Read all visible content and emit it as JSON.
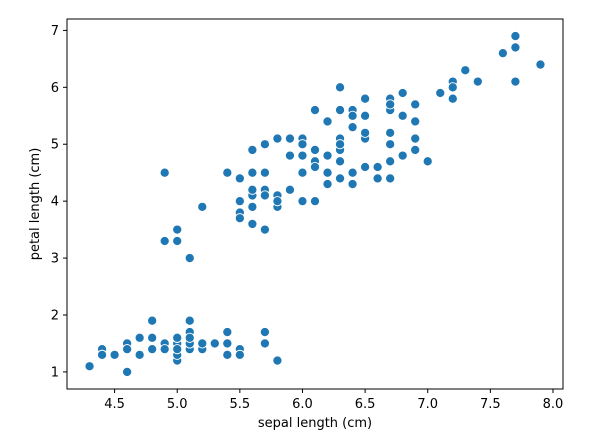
{
  "chart_data": {
    "type": "scatter",
    "xlabel": "sepal length (cm)",
    "ylabel": "petal length (cm)",
    "xlim": [
      4.12,
      8.08
    ],
    "ylim": [
      0.7,
      7.2
    ],
    "xticks": [
      4.5,
      5.0,
      5.5,
      6.0,
      6.5,
      7.0,
      7.5,
      8.0
    ],
    "xtick_labels": [
      "4.5",
      "5.0",
      "5.5",
      "6.0",
      "6.5",
      "7.0",
      "7.5",
      "8.0"
    ],
    "yticks": [
      1,
      2,
      3,
      4,
      5,
      6,
      7
    ],
    "ytick_labels": [
      "1",
      "2",
      "3",
      "4",
      "5",
      "6",
      "7"
    ],
    "grid": false,
    "marker_color": "#1f77b4",
    "marker_edge_color": "#ffffff",
    "points": [
      [
        5.1,
        1.4
      ],
      [
        4.9,
        1.4
      ],
      [
        4.7,
        1.3
      ],
      [
        4.6,
        1.5
      ],
      [
        5.0,
        1.4
      ],
      [
        5.4,
        1.7
      ],
      [
        4.6,
        1.4
      ],
      [
        5.0,
        1.5
      ],
      [
        4.4,
        1.4
      ],
      [
        4.9,
        1.5
      ],
      [
        5.4,
        1.5
      ],
      [
        4.8,
        1.6
      ],
      [
        4.8,
        1.4
      ],
      [
        4.3,
        1.1
      ],
      [
        5.8,
        1.2
      ],
      [
        5.7,
        1.5
      ],
      [
        5.4,
        1.3
      ],
      [
        5.1,
        1.4
      ],
      [
        5.7,
        1.7
      ],
      [
        5.1,
        1.5
      ],
      [
        5.4,
        1.7
      ],
      [
        5.1,
        1.5
      ],
      [
        4.6,
        1.0
      ],
      [
        5.1,
        1.7
      ],
      [
        4.8,
        1.9
      ],
      [
        5.0,
        1.6
      ],
      [
        5.0,
        1.6
      ],
      [
        5.2,
        1.5
      ],
      [
        5.2,
        1.4
      ],
      [
        4.7,
        1.6
      ],
      [
        4.8,
        1.6
      ],
      [
        5.4,
        1.5
      ],
      [
        5.2,
        1.5
      ],
      [
        5.5,
        1.4
      ],
      [
        4.9,
        1.5
      ],
      [
        5.0,
        1.2
      ],
      [
        5.5,
        1.3
      ],
      [
        4.9,
        1.4
      ],
      [
        4.4,
        1.3
      ],
      [
        5.1,
        1.5
      ],
      [
        5.0,
        1.3
      ],
      [
        4.5,
        1.3
      ],
      [
        4.4,
        1.3
      ],
      [
        5.0,
        1.6
      ],
      [
        5.1,
        1.9
      ],
      [
        4.8,
        1.4
      ],
      [
        5.1,
        1.6
      ],
      [
        4.6,
        1.4
      ],
      [
        5.3,
        1.5
      ],
      [
        5.0,
        1.4
      ],
      [
        7.0,
        4.7
      ],
      [
        6.4,
        4.5
      ],
      [
        6.9,
        4.9
      ],
      [
        5.5,
        4.0
      ],
      [
        6.5,
        4.6
      ],
      [
        5.7,
        4.5
      ],
      [
        6.3,
        4.7
      ],
      [
        4.9,
        3.3
      ],
      [
        6.6,
        4.6
      ],
      [
        5.2,
        3.9
      ],
      [
        5.0,
        3.5
      ],
      [
        5.9,
        4.2
      ],
      [
        6.0,
        4.0
      ],
      [
        6.1,
        4.7
      ],
      [
        5.6,
        3.6
      ],
      [
        6.7,
        4.4
      ],
      [
        5.6,
        4.5
      ],
      [
        5.8,
        4.1
      ],
      [
        6.2,
        4.5
      ],
      [
        5.6,
        3.9
      ],
      [
        5.9,
        4.8
      ],
      [
        6.1,
        4.0
      ],
      [
        6.3,
        4.9
      ],
      [
        6.1,
        4.7
      ],
      [
        6.4,
        4.3
      ],
      [
        6.6,
        4.4
      ],
      [
        6.8,
        4.8
      ],
      [
        6.7,
        5.0
      ],
      [
        6.0,
        4.5
      ],
      [
        5.7,
        3.5
      ],
      [
        5.5,
        3.8
      ],
      [
        5.5,
        3.7
      ],
      [
        5.8,
        3.9
      ],
      [
        6.0,
        5.1
      ],
      [
        5.4,
        4.5
      ],
      [
        6.0,
        4.5
      ],
      [
        6.7,
        4.7
      ],
      [
        6.3,
        4.4
      ],
      [
        5.6,
        4.1
      ],
      [
        5.5,
        4.0
      ],
      [
        5.5,
        4.4
      ],
      [
        6.1,
        4.6
      ],
      [
        5.8,
        4.0
      ],
      [
        5.0,
        3.3
      ],
      [
        5.6,
        4.2
      ],
      [
        5.7,
        4.2
      ],
      [
        5.7,
        4.2
      ],
      [
        6.2,
        4.3
      ],
      [
        5.1,
        3.0
      ],
      [
        5.7,
        4.1
      ],
      [
        6.3,
        6.0
      ],
      [
        5.8,
        5.1
      ],
      [
        7.1,
        5.9
      ],
      [
        6.3,
        5.6
      ],
      [
        6.5,
        5.8
      ],
      [
        7.6,
        6.6
      ],
      [
        4.9,
        4.5
      ],
      [
        7.3,
        6.3
      ],
      [
        6.7,
        5.8
      ],
      [
        7.2,
        6.1
      ],
      [
        6.5,
        5.1
      ],
      [
        6.4,
        5.3
      ],
      [
        6.8,
        5.5
      ],
      [
        5.7,
        5.0
      ],
      [
        5.8,
        5.1
      ],
      [
        6.4,
        5.3
      ],
      [
        6.5,
        5.5
      ],
      [
        7.7,
        6.7
      ],
      [
        7.7,
        6.9
      ],
      [
        6.0,
        5.0
      ],
      [
        6.9,
        5.7
      ],
      [
        5.6,
        4.9
      ],
      [
        7.7,
        6.7
      ],
      [
        6.3,
        4.9
      ],
      [
        6.7,
        5.7
      ],
      [
        7.2,
        6.0
      ],
      [
        6.2,
        4.8
      ],
      [
        6.1,
        4.9
      ],
      [
        6.4,
        5.6
      ],
      [
        7.2,
        5.8
      ],
      [
        7.4,
        6.1
      ],
      [
        7.9,
        6.4
      ],
      [
        6.4,
        5.6
      ],
      [
        6.3,
        5.1
      ],
      [
        6.1,
        5.6
      ],
      [
        7.7,
        6.1
      ],
      [
        6.3,
        5.6
      ],
      [
        6.4,
        5.5
      ],
      [
        6.0,
        4.8
      ],
      [
        6.9,
        5.4
      ],
      [
        6.7,
        5.6
      ],
      [
        6.9,
        5.1
      ],
      [
        5.8,
        5.1
      ],
      [
        6.8,
        5.9
      ],
      [
        6.7,
        5.7
      ],
      [
        6.7,
        5.2
      ],
      [
        6.3,
        5.0
      ],
      [
        6.5,
        5.2
      ],
      [
        6.2,
        5.4
      ],
      [
        5.9,
        5.1
      ]
    ]
  }
}
